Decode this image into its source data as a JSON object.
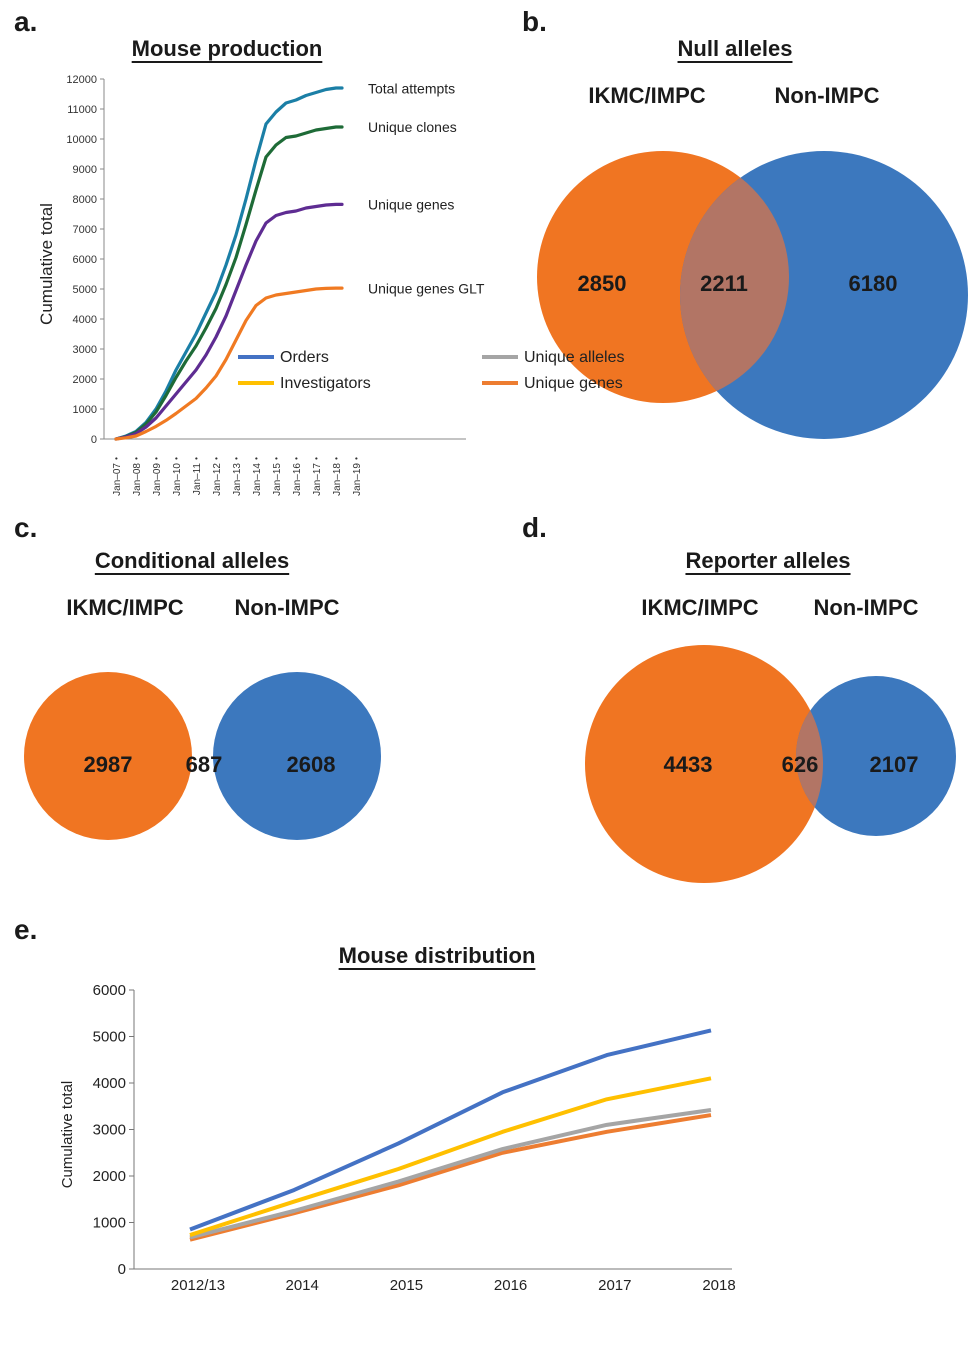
{
  "panels": {
    "a": {
      "letter": "a."
    },
    "b": {
      "letter": "b."
    },
    "c": {
      "letter": "c."
    },
    "d": {
      "letter": "d."
    },
    "e": {
      "letter": "e."
    }
  },
  "colors": {
    "orange": "#f07522",
    "blue": "#3c78be",
    "overlap": "#b27565",
    "teal": "#1b7fa6",
    "green": "#1e6b37",
    "purple": "#5e2c92",
    "line_orange": "#f07a22",
    "orders": "#4472c4",
    "investigators": "#ffc000",
    "unique_alleles": "#a5a5a5",
    "unique_genes": "#ed7d31"
  },
  "chart_data": [
    {
      "type": "line",
      "title": "Mouse production",
      "ylabel": "Cumulative total",
      "xlabel": "",
      "ylim": [
        0,
        12000
      ],
      "yticks": [
        0,
        1000,
        2000,
        3000,
        4000,
        5000,
        6000,
        7000,
        8000,
        9000,
        10000,
        11000,
        12000
      ],
      "xtick_labels": [
        "Jan–07",
        "Jan–08",
        "Jan–09",
        "Jan–10",
        "Jan–11",
        "Jan–12",
        "Jan–13",
        "Jan–14",
        "Jan–15",
        "Jan–16",
        "Jan–17",
        "Jan–18",
        "Jan–19"
      ],
      "x": [
        2007.0,
        2007.5,
        2008.0,
        2008.5,
        2009.0,
        2009.5,
        2010.0,
        2010.5,
        2011.0,
        2011.5,
        2012.0,
        2012.5,
        2013.0,
        2013.5,
        2014.0,
        2014.5,
        2015.0,
        2015.5,
        2016.0,
        2016.5,
        2017.0,
        2017.5,
        2018.0,
        2018.3
      ],
      "series": [
        {
          "name": "Total attempts",
          "color_key": "teal",
          "values": [
            0,
            100,
            250,
            550,
            1000,
            1600,
            2300,
            2900,
            3500,
            4200,
            4900,
            5800,
            6800,
            8000,
            9300,
            10500,
            10900,
            11200,
            11300,
            11450,
            11550,
            11650,
            11700,
            11700
          ]
        },
        {
          "name": "Unique clones",
          "color_key": "green",
          "values": [
            0,
            80,
            220,
            500,
            900,
            1450,
            2050,
            2600,
            3100,
            3700,
            4350,
            5150,
            6050,
            7150,
            8300,
            9400,
            9800,
            10050,
            10100,
            10200,
            10300,
            10350,
            10400,
            10400
          ]
        },
        {
          "name": "Unique genes",
          "color_key": "purple",
          "values": [
            0,
            70,
            180,
            400,
            700,
            1100,
            1500,
            1900,
            2300,
            2800,
            3400,
            4100,
            4950,
            5800,
            6600,
            7200,
            7450,
            7550,
            7600,
            7700,
            7750,
            7800,
            7820,
            7820
          ]
        },
        {
          "name": "Unique genes GLT",
          "color_key": "line_orange",
          "values": [
            0,
            40,
            100,
            250,
            420,
            620,
            850,
            1100,
            1350,
            1700,
            2100,
            2650,
            3300,
            3950,
            4450,
            4700,
            4800,
            4850,
            4900,
            4950,
            5000,
            5020,
            5030,
            5030
          ]
        }
      ]
    },
    {
      "type": "venn",
      "title": "Null alleles",
      "sets": [
        "IKMC/IMPC",
        "Non-IMPC"
      ],
      "left_only": 2850,
      "overlap": 2211,
      "right_only": 6180
    },
    {
      "type": "venn",
      "title": "Conditional alleles",
      "sets": [
        "IKMC/IMPC",
        "Non-IMPC"
      ],
      "left_only": 2987,
      "overlap": 687,
      "right_only": 2608
    },
    {
      "type": "venn",
      "title": "Reporter alleles",
      "sets": [
        "IKMC/IMPC",
        "Non-IMPC"
      ],
      "left_only": 4433,
      "overlap": 626,
      "right_only": 2107
    },
    {
      "type": "line",
      "title": "Mouse distribution",
      "ylabel": "Cumulative total",
      "xlabel": "",
      "ylim": [
        0,
        6000
      ],
      "yticks": [
        0,
        1000,
        2000,
        3000,
        4000,
        5000,
        6000
      ],
      "categories": [
        "2012/13",
        "2014",
        "2015",
        "2016",
        "2017",
        "2018"
      ],
      "legend_position": "bottom",
      "series": [
        {
          "name": "Orders",
          "color_key": "orders",
          "values": [
            850,
            1700,
            2700,
            3800,
            4600,
            5130
          ]
        },
        {
          "name": "Investigators",
          "color_key": "investigators",
          "values": [
            730,
            1450,
            2150,
            2950,
            3650,
            4100
          ]
        },
        {
          "name": "Unique alleles",
          "color_key": "unique_alleles",
          "values": [
            680,
            1250,
            1880,
            2580,
            3100,
            3420
          ]
        },
        {
          "name": "Unique genes",
          "color_key": "unique_genes",
          "values": [
            630,
            1200,
            1800,
            2500,
            2950,
            3310
          ]
        }
      ]
    }
  ]
}
